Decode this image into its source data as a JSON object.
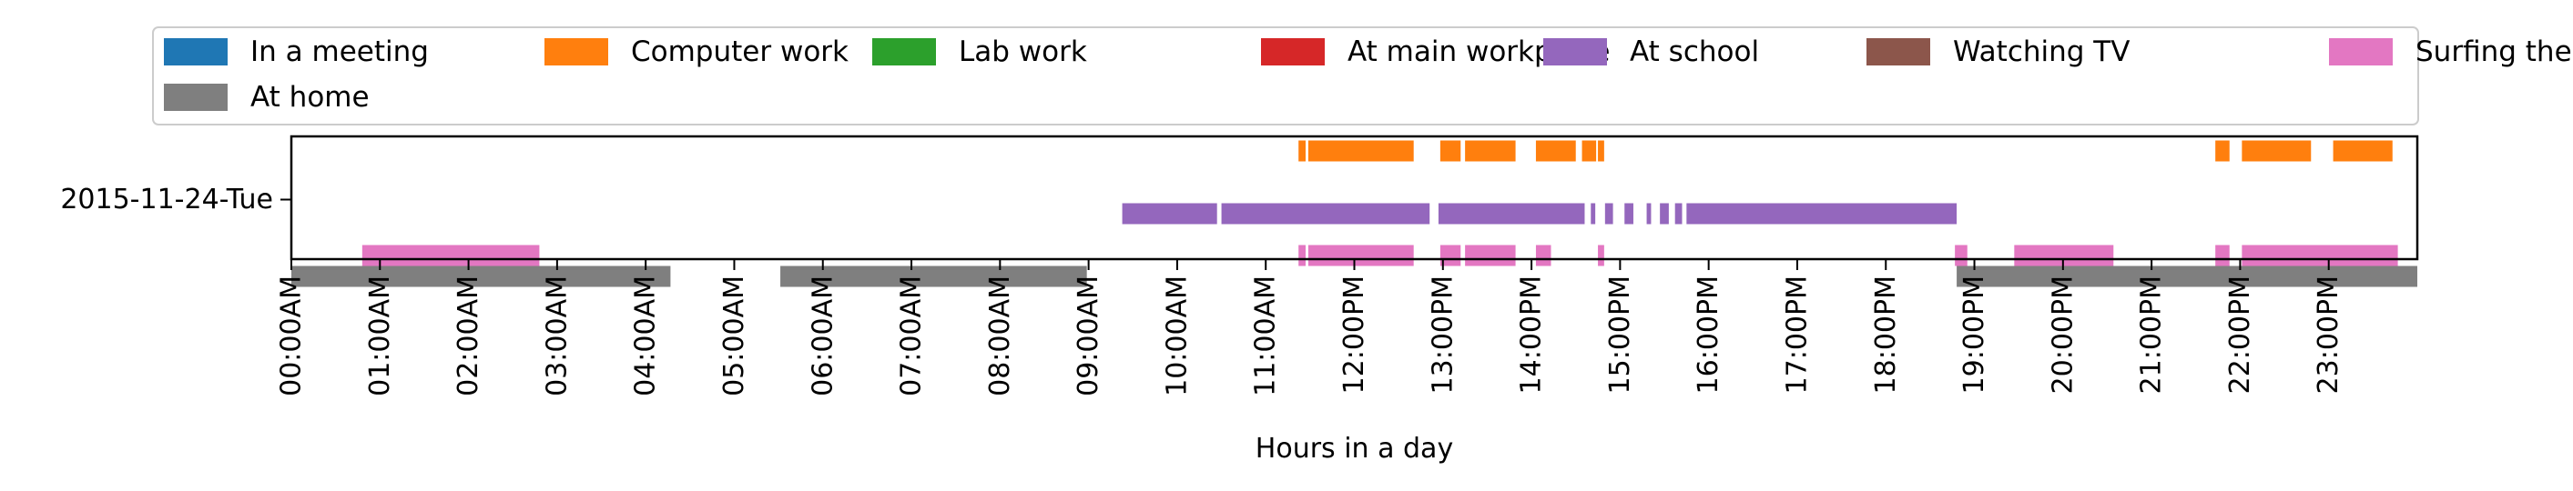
{
  "chart_data": {
    "type": "broken_barh",
    "title": "",
    "xlabel": "Hours in a day",
    "ylabel": "",
    "xlim": [
      0,
      24
    ],
    "y_categories": [
      "2015-11-24-Tue"
    ],
    "x_ticks": [
      0,
      1,
      2,
      3,
      4,
      5,
      6,
      7,
      8,
      9,
      10,
      11,
      12,
      13,
      14,
      15,
      16,
      17,
      18,
      19,
      20,
      21,
      22,
      23
    ],
    "x_tick_labels": [
      "00:00AM",
      "01:00AM",
      "02:00AM",
      "03:00AM",
      "04:00AM",
      "05:00AM",
      "06:00AM",
      "07:00AM",
      "08:00AM",
      "09:00AM",
      "10:00AM",
      "11:00AM",
      "12:00PM",
      "13:00PM",
      "14:00PM",
      "15:00PM",
      "16:00PM",
      "17:00PM",
      "18:00PM",
      "19:00PM",
      "20:00PM",
      "21:00PM",
      "22:00PM",
      "23:00PM"
    ],
    "legend_position": "top",
    "grid": false,
    "series": [
      {
        "name": "In a meeting",
        "color": "#1f77b4",
        "lane": 0,
        "segments": []
      },
      {
        "name": "Computer work",
        "color": "#ff7f0e",
        "lane": 1,
        "segments": [
          [
            11.37,
            11.45
          ],
          [
            11.48,
            12.67
          ],
          [
            12.97,
            13.2
          ],
          [
            13.25,
            13.82
          ],
          [
            14.05,
            14.5
          ],
          [
            14.57,
            14.73
          ],
          [
            14.75,
            14.82
          ],
          [
            21.72,
            21.88
          ],
          [
            22.02,
            22.8
          ],
          [
            23.05,
            23.72
          ]
        ]
      },
      {
        "name": "Lab work",
        "color": "#2ca02c",
        "lane": 2,
        "segments": []
      },
      {
        "name": "At main workplace",
        "color": "#d62728",
        "lane": 3,
        "segments": []
      },
      {
        "name": "At school",
        "color": "#9467bd",
        "lane": 4,
        "segments": [
          [
            9.38,
            10.45
          ],
          [
            10.5,
            12.85
          ],
          [
            12.95,
            14.6
          ],
          [
            14.67,
            14.72
          ],
          [
            14.83,
            14.92
          ],
          [
            15.05,
            15.15
          ],
          [
            15.3,
            15.35
          ],
          [
            15.45,
            15.55
          ],
          [
            15.62,
            15.7
          ],
          [
            15.75,
            18.8
          ]
        ]
      },
      {
        "name": "Watching TV",
        "color": "#8c564b",
        "lane": 5,
        "segments": []
      },
      {
        "name": "Surfing the internet",
        "color": "#e377c2",
        "lane": 6,
        "segments": [
          [
            0.8,
            2.8
          ],
          [
            11.37,
            11.45
          ],
          [
            11.48,
            12.67
          ],
          [
            12.97,
            13.2
          ],
          [
            13.25,
            13.82
          ],
          [
            14.05,
            14.22
          ],
          [
            14.75,
            14.82
          ],
          [
            18.78,
            18.92
          ],
          [
            19.45,
            20.57
          ],
          [
            21.72,
            21.88
          ],
          [
            22.02,
            23.78
          ]
        ]
      },
      {
        "name": "At home",
        "color": "#7f7f7f",
        "lane": 7,
        "segments": [
          [
            0,
            4.28
          ],
          [
            5.52,
            8.98
          ],
          [
            18.8,
            24
          ]
        ]
      }
    ]
  }
}
